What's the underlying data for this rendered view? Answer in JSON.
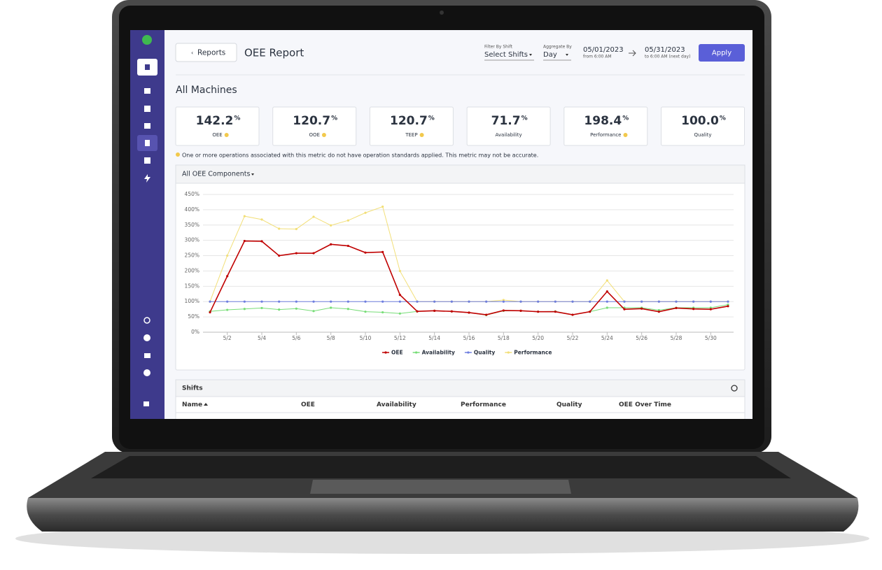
{
  "header": {
    "back_button": "Reports",
    "title": "OEE Report",
    "shift_filter_label": "Filter By Shift",
    "shift_filter_value": "Select Shifts",
    "aggregate_label": "Aggregate By",
    "aggregate_value": "Day",
    "start_date": "05/01/2023",
    "start_note": "from 6:00 AM",
    "end_date": "05/31/2023",
    "end_note": "to 6:00 AM (next day)",
    "apply_button": "Apply"
  },
  "section_title": "All Machines",
  "kpis": [
    {
      "value": "142.2",
      "unit": "%",
      "label": "OEE",
      "warning": true
    },
    {
      "value": "120.7",
      "unit": "%",
      "label": "OOE",
      "warning": true
    },
    {
      "value": "120.7",
      "unit": "%",
      "label": "TEEP",
      "warning": true
    },
    {
      "value": "71.7",
      "unit": "%",
      "label": "Availability",
      "warning": false
    },
    {
      "value": "198.4",
      "unit": "%",
      "label": "Performance",
      "warning": true
    },
    {
      "value": "100.0",
      "unit": "%",
      "label": "Quality",
      "warning": false
    }
  ],
  "notice": "One or more operations associated with this metric do not have operation standards applied. This metric may not be accurate.",
  "chart_data": {
    "type": "line",
    "selector": "All OEE Components",
    "categories": [
      null,
      "5/2",
      null,
      "5/4",
      null,
      "5/6",
      null,
      "5/8",
      null,
      "5/10",
      null,
      "5/12",
      null,
      "5/14",
      null,
      "5/16",
      null,
      "5/18",
      null,
      "5/20",
      null,
      "5/22",
      null,
      "5/24",
      null,
      "5/26",
      null,
      "5/28",
      null,
      "5/30",
      null
    ],
    "ylim": [
      0,
      450
    ],
    "yticks": [
      {
        "value": 0,
        "label": "0%"
      },
      {
        "value": 50,
        "label": "50%"
      },
      {
        "value": 100,
        "label": "100%"
      },
      {
        "value": 150,
        "label": "150%"
      },
      {
        "value": 200,
        "label": "200%"
      },
      {
        "value": 250,
        "label": "250%"
      },
      {
        "value": 300,
        "label": "300%"
      },
      {
        "value": 350,
        "label": "350%"
      },
      {
        "value": 400,
        "label": "400%"
      },
      {
        "value": 450,
        "label": "450%"
      }
    ],
    "grid": true,
    "series": [
      {
        "name": "OEE",
        "color": "#c00000",
        "values": [
          65,
          183,
          298,
          297,
          250,
          258,
          258,
          287,
          282,
          260,
          262,
          122,
          68,
          70,
          68,
          64,
          57,
          71,
          70,
          67,
          67,
          57,
          67,
          133,
          75,
          77,
          67,
          79,
          76,
          75,
          85
        ]
      },
      {
        "name": "Availability",
        "color": "#77dd77",
        "values": [
          68,
          73,
          76,
          79,
          74,
          77,
          69,
          80,
          76,
          67,
          65,
          61,
          68,
          70,
          68,
          64,
          56,
          70,
          70,
          67,
          68,
          57,
          67,
          80,
          80,
          80,
          72,
          80,
          80,
          80,
          90
        ]
      },
      {
        "name": "Quality",
        "color": "#6f7fe0",
        "values": [
          100,
          100,
          100,
          100,
          100,
          100,
          100,
          100,
          100,
          100,
          100,
          100,
          100,
          100,
          100,
          100,
          100,
          100,
          100,
          100,
          100,
          100,
          100,
          100,
          100,
          100,
          100,
          100,
          100,
          100,
          100
        ]
      },
      {
        "name": "Performance",
        "color": "#f2df78",
        "values": [
          100,
          250,
          379,
          368,
          338,
          337,
          377,
          349,
          365,
          390,
          410,
          200,
          100,
          100,
          100,
          100,
          100,
          105,
          100,
          100,
          100,
          100,
          100,
          169,
          100,
          100,
          100,
          100,
          100,
          100,
          100
        ]
      }
    ]
  },
  "table": {
    "title": "Shifts",
    "columns": [
      "Name",
      "OEE",
      "Availability",
      "Performance",
      "Quality",
      "OEE Over Time"
    ]
  }
}
